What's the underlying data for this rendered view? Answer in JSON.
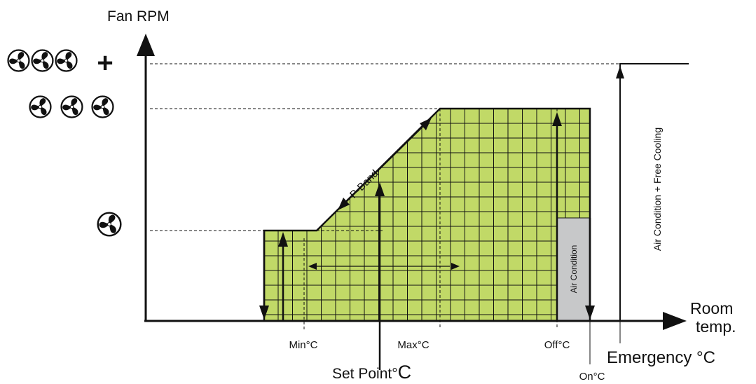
{
  "axes": {
    "y_label": "Fan RPM",
    "x_label_line1": "Room",
    "x_label_line2": "temp."
  },
  "fan_levels": {
    "low": {
      "icon": "fan-icon",
      "count": 1,
      "suffix": ""
    },
    "high": {
      "icon": "fan-icon",
      "count": 3,
      "suffix": ""
    },
    "boost": {
      "icon": "fan-icon",
      "count": 3,
      "suffix": "+"
    }
  },
  "labels": {
    "p_band": "P-Band",
    "air_condition": "Air Condition",
    "air_condition_free_cooling": "Air Condition + Free Cooling",
    "min": "Min°C",
    "max": "Max°C",
    "off": "Off°C",
    "on": "On°C",
    "set_point_main": "Set Point°",
    "set_point_unit": "C",
    "emergency": "Emergency °C"
  },
  "colors": {
    "band_fill": "#c1d967",
    "ac_fill": "#c7c8c9",
    "line": "#111111"
  }
}
